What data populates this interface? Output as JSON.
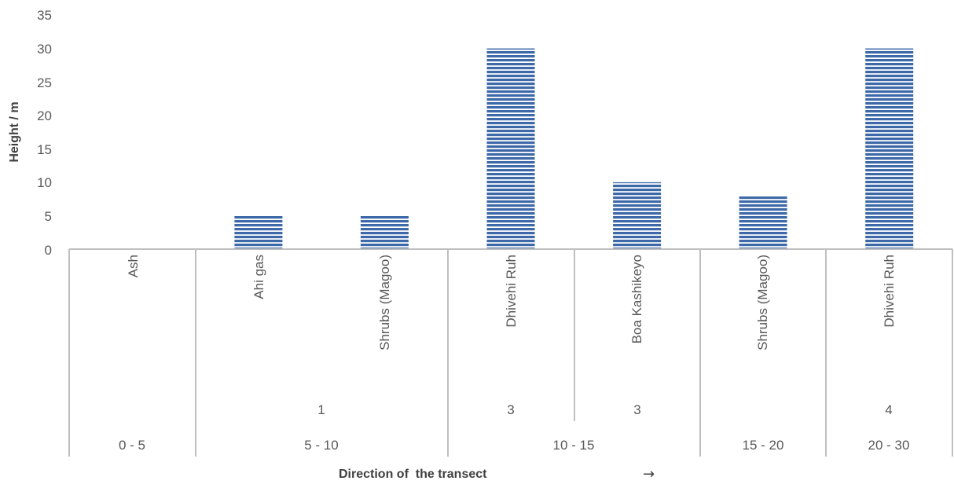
{
  "chart_data": {
    "type": "bar",
    "ylabel": "Height / m",
    "xlabel": "Direction of  the transect",
    "xlabel_arrow": "→",
    "ylim": [
      0,
      35
    ],
    "yticks": [
      "0",
      "5",
      "10",
      "15",
      "20",
      "25",
      "30",
      "35"
    ],
    "grid": false,
    "bar_color": "#3d69a8",
    "bar_stripe_color": "#ffffff",
    "categories": [
      "Ash",
      "Ahi gas",
      "Shrubs (Magoo)",
      "Dhivehi Ruh",
      "Boa Kashikeyo",
      "Shrubs (Magoo)",
      "Dhivehi Ruh"
    ],
    "values": [
      0,
      5,
      5,
      30,
      10,
      8,
      30
    ],
    "level2_labels": [
      "1",
      "3",
      "3",
      "4"
    ],
    "level3_labels": [
      "0 - 5",
      "5 - 10",
      "10 - 15",
      "15 - 20",
      "20 - 30"
    ]
  }
}
